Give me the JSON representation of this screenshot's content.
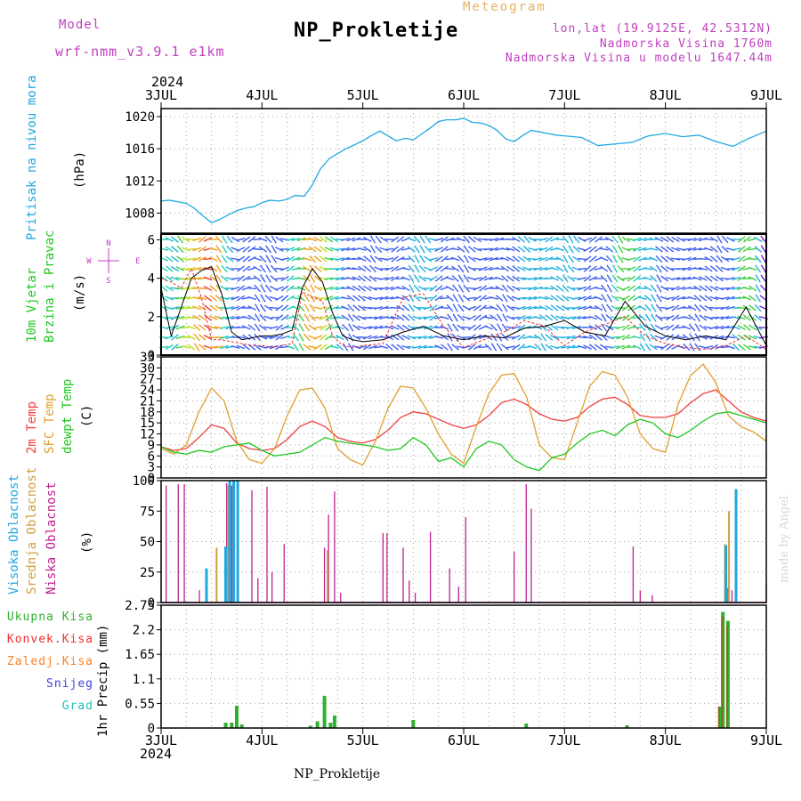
{
  "header": {
    "model_label": "Model",
    "model_name": "wrf-nmm_v3.9.1  e1km",
    "title": "NP_Prokletije",
    "meteogram_label": "Meteogram",
    "lonlat": "lon,lat (19.9125E, 42.5312N)",
    "altitude": "Nadmorska Visina 1760m",
    "model_altitude": "Nadmorska Visina u modelu 1647.44m",
    "year_top": "2024",
    "year_bottom": "2024",
    "footer_title": "NP_Prokletije",
    "credit": "made by Angel"
  },
  "colors": {
    "pressure": "#20a8e0",
    "t2m": "#f04040",
    "sfc": "#e0a030",
    "dew": "#20c820",
    "cloud_high": "#20a8e0",
    "cloud_mid": "#d0a040",
    "cloud_low": "#c02090",
    "precip_total": "#30b030",
    "precip_conv": "#f03030",
    "precip_frz": "#ff8020",
    "precip_snow": "#4040e0",
    "precip_hail": "#20c0c0",
    "grid": "#a0a0a0"
  },
  "chart_data": [
    {
      "type": "line",
      "panel": "pressure",
      "x_ticks": [
        "3JUL",
        "4JUL",
        "5JUL",
        "6JUL",
        "7JUL",
        "8JUL",
        "9JUL"
      ],
      "ylabel_1": "Pritisak na nivou mora",
      "ylabel_2": "(hPa)",
      "ylim": [
        1005.5,
        1021
      ],
      "y_ticks": [
        "1008",
        "1012",
        "1016",
        "1020"
      ],
      "x_days": [
        0,
        0.08,
        0.17,
        0.25,
        0.33,
        0.42,
        0.5,
        0.58,
        0.67,
        0.75,
        0.83,
        0.92,
        1.0,
        1.08,
        1.17,
        1.25,
        1.33,
        1.42,
        1.5,
        1.58,
        1.67,
        1.75,
        1.83,
        1.92,
        2.0,
        2.08,
        2.17,
        2.25,
        2.33,
        2.42,
        2.5,
        2.58,
        2.67,
        2.75,
        2.83,
        2.92,
        3.0,
        3.08,
        3.17,
        3.25,
        3.33,
        3.42,
        3.5,
        3.58,
        3.67,
        3.75,
        3.83,
        3.92,
        4.0,
        4.17,
        4.33,
        4.5,
        4.67,
        4.83,
        5.0,
        5.17,
        5.33,
        5.5,
        5.67,
        5.83,
        6.0
      ],
      "series": [
        {
          "values": [
            1009.5,
            1009.6,
            1009.4,
            1009.2,
            1008.6,
            1007.6,
            1006.8,
            1007.2,
            1007.8,
            1008.3,
            1008.6,
            1008.8,
            1009.3,
            1009.6,
            1009.5,
            1009.7,
            1010.2,
            1010.1,
            1011.5,
            1013.5,
            1014.8,
            1015.4,
            1016.0,
            1016.5,
            1017.0,
            1017.6,
            1018.2,
            1017.6,
            1017.0,
            1017.3,
            1017.1,
            1017.8,
            1018.6,
            1019.4,
            1019.6,
            1019.6,
            1019.8,
            1019.3,
            1019.2,
            1018.9,
            1018.3,
            1017.2,
            1016.9,
            1017.6,
            1018.3,
            1018.1,
            1017.9,
            1017.7,
            1017.6,
            1017.4,
            1016.4,
            1016.6,
            1016.8,
            1017.6,
            1017.9,
            1017.5,
            1017.7,
            1016.9,
            1016.3,
            1017.3,
            1018.2
          ]
        }
      ]
    },
    {
      "type": "line",
      "panel": "wind",
      "ylabel_1": "10m Vjetar",
      "ylabel_2": "Brzina i Pravac",
      "ylabel_3": "(m/s)",
      "compass": [
        "N",
        "W",
        "E",
        "S"
      ],
      "ylim": [
        0,
        6.3
      ],
      "y_ticks": [
        "0",
        "2",
        "4",
        "6"
      ],
      "x_days": [
        0,
        0.1,
        0.2,
        0.3,
        0.4,
        0.5,
        0.6,
        0.7,
        0.8,
        0.9,
        1.0,
        1.1,
        1.2,
        1.3,
        1.4,
        1.5,
        1.6,
        1.7,
        1.8,
        1.9,
        2.0,
        2.2,
        2.4,
        2.6,
        2.8,
        3.0,
        3.2,
        3.4,
        3.6,
        3.8,
        4.0,
        4.2,
        4.4,
        4.6,
        4.8,
        5.0,
        5.2,
        5.4,
        5.6,
        5.8,
        6.0
      ],
      "series": [
        {
          "values": [
            3.5,
            1.0,
            2.5,
            4.0,
            4.4,
            4.6,
            3.2,
            1.2,
            0.8,
            0.9,
            1.0,
            1.0,
            1.1,
            1.3,
            3.5,
            4.5,
            3.8,
            2.2,
            1.0,
            0.8,
            0.7,
            0.8,
            1.2,
            1.5,
            1.0,
            0.8,
            1.0,
            0.9,
            1.4,
            1.5,
            1.8,
            1.2,
            1.0,
            2.8,
            1.5,
            1.0,
            0.8,
            1.0,
            0.8,
            2.5,
            0.5
          ]
        },
        {
          "values": [
            4.0,
            3.8,
            3.5,
            4.5,
            3.0,
            0.8,
            0.8,
            0.7,
            0.6,
            0.5,
            0.5,
            0.4,
            0.5,
            0.6,
            3.3,
            3.0,
            2.8,
            1.0,
            0.5,
            0.4,
            0.5,
            0.6,
            3.0,
            3.2,
            1.5,
            0.4,
            0.8,
            1.2,
            1.8,
            1.5,
            0.5,
            1.2,
            1.6,
            2.0,
            1.0,
            0.6,
            0.4,
            0.3,
            0.5,
            1.0,
            0.3
          ]
        }
      ]
    },
    {
      "type": "line",
      "panel": "temperature",
      "ylabel_1": "2m Temp",
      "ylabel_2": "SFC Temp",
      "ylabel_3": "dewpt Temp",
      "ylabel_4": "(C)",
      "ylim": [
        0,
        33
      ],
      "y_ticks": [
        "0",
        "3",
        "6",
        "9",
        "12",
        "15",
        "18",
        "21",
        "24",
        "27",
        "30",
        "33"
      ],
      "x_days": [
        0,
        0.125,
        0.25,
        0.375,
        0.5,
        0.625,
        0.75,
        0.875,
        1.0,
        1.125,
        1.25,
        1.375,
        1.5,
        1.625,
        1.75,
        1.875,
        2.0,
        2.125,
        2.25,
        2.375,
        2.5,
        2.625,
        2.75,
        2.875,
        3.0,
        3.125,
        3.25,
        3.375,
        3.5,
        3.625,
        3.75,
        3.875,
        4.0,
        4.125,
        4.25,
        4.375,
        4.5,
        4.625,
        4.75,
        4.875,
        5.0,
        5.125,
        5.25,
        5.375,
        5.5,
        5.625,
        5.75,
        5.875,
        6.0
      ],
      "series": [
        {
          "name": "2m Temp",
          "values": [
            8.5,
            7.5,
            8.0,
            11.0,
            14.5,
            13.5,
            9.5,
            8.0,
            7.5,
            8.0,
            10.5,
            14.0,
            15.5,
            14.0,
            11.0,
            10.0,
            9.5,
            10.5,
            13.0,
            16.5,
            18.0,
            17.5,
            16.0,
            14.5,
            13.5,
            14.5,
            17.0,
            20.5,
            21.5,
            20.0,
            17.5,
            16.0,
            15.5,
            16.5,
            19.5,
            21.5,
            22.0,
            20.0,
            17.0,
            16.5,
            16.5,
            17.5,
            20.5,
            23.0,
            24.0,
            21.0,
            18.0,
            16.5,
            15.5
          ]
        },
        {
          "name": "SFC Temp",
          "values": [
            8.0,
            6.5,
            9.0,
            18.0,
            24.5,
            21.0,
            10.0,
            5.0,
            4.0,
            8.0,
            17.0,
            24.0,
            24.5,
            19.0,
            8.0,
            5.0,
            3.5,
            10.0,
            19.0,
            25.0,
            24.5,
            19.0,
            12.0,
            6.5,
            4.0,
            14.0,
            23.0,
            28.0,
            28.5,
            22.0,
            9.0,
            5.5,
            5.0,
            15.0,
            25.0,
            29.0,
            28.0,
            22.0,
            12.0,
            8.0,
            7.0,
            20.0,
            28.0,
            31.0,
            26.0,
            17.0,
            14.0,
            12.5,
            10.0
          ]
        },
        {
          "name": "dewpt Temp",
          "values": [
            8.5,
            7.0,
            6.5,
            7.5,
            7.0,
            8.5,
            9.0,
            9.5,
            7.5,
            6.0,
            6.5,
            7.0,
            9.0,
            11.0,
            10.0,
            9.5,
            9.0,
            8.5,
            7.5,
            8.0,
            11.0,
            9.0,
            4.5,
            5.5,
            3.0,
            8.0,
            10.0,
            9.0,
            5.0,
            3.0,
            2.0,
            5.5,
            6.5,
            9.5,
            12.0,
            13.0,
            11.5,
            14.5,
            16.0,
            15.0,
            12.0,
            11.0,
            13.0,
            15.5,
            17.5,
            18.0,
            17.0,
            16.0,
            15.0
          ]
        }
      ]
    },
    {
      "type": "bar",
      "panel": "clouds",
      "ylabel_1": "Visoka Oblacnost",
      "ylabel_2": "Srednja Oblacnost",
      "ylabel_3": "Niska Oblacnost",
      "ylabel_4": "(%)",
      "ylim": [
        0,
        100
      ],
      "y_ticks": [
        "0",
        "25",
        "50",
        "75",
        "100"
      ],
      "low": {
        "x_days": [
          0.05,
          0.17,
          0.23,
          0.38,
          0.45,
          0.55,
          0.65,
          0.7,
          0.9,
          0.96,
          1.05,
          1.1,
          1.22,
          1.62,
          1.66,
          1.72,
          1.78,
          2.2,
          2.24,
          2.4,
          2.46,
          2.52,
          2.67,
          2.86,
          2.95,
          3.02,
          3.5,
          3.62,
          3.67,
          4.68,
          4.75,
          4.87,
          5.62,
          5.66,
          6.0
        ],
        "values": [
          96,
          97,
          97,
          10,
          5,
          43,
          98,
          96,
          92,
          20,
          95,
          25,
          48,
          45,
          72,
          91,
          8,
          57,
          57,
          45,
          18,
          8,
          58,
          28,
          13,
          70,
          42,
          97,
          77,
          46,
          10,
          6,
          12,
          10,
          14
        ]
      },
      "mid": {
        "x_days": [
          0.55,
          0.66,
          0.72,
          1.65,
          5.59,
          5.63
        ],
        "values": [
          45,
          96,
          97,
          43,
          48,
          75
        ]
      },
      "high": {
        "x_days": [
          0.45,
          0.64,
          0.68,
          0.72,
          0.76,
          5.6,
          5.7
        ],
        "values": [
          28,
          46,
          100,
          100,
          100,
          47,
          93
        ]
      }
    },
    {
      "type": "bar",
      "panel": "precipitation",
      "ylabel_1": "1hr Precip (mm)",
      "ylim": [
        0,
        2.75
      ],
      "y_ticks": [
        "0",
        "0.55",
        "1.1",
        "1.65",
        "2.2",
        "2.75"
      ],
      "legend": [
        "Ukupna Kisa",
        "Konvek.Kisa",
        "Zaledj.Kisa",
        "Snijeg",
        "Grad"
      ],
      "x_days": [
        0.64,
        0.7,
        0.75,
        0.8,
        1.48,
        1.55,
        1.62,
        1.68,
        1.72,
        2.5,
        3.62,
        4.62,
        5.54,
        5.57,
        5.62
      ],
      "total": [
        0.12,
        0.12,
        0.5,
        0.08,
        0.05,
        0.15,
        0.72,
        0.12,
        0.28,
        0.18,
        0.1,
        0.06,
        0.48,
        2.6,
        2.4
      ],
      "convective": [
        0.05,
        0.04,
        0.1,
        0.0,
        0.0,
        0.03,
        0.1,
        0.03,
        0.05,
        0.02,
        0.03,
        0.0,
        0.48,
        2.5,
        2.3
      ]
    }
  ]
}
